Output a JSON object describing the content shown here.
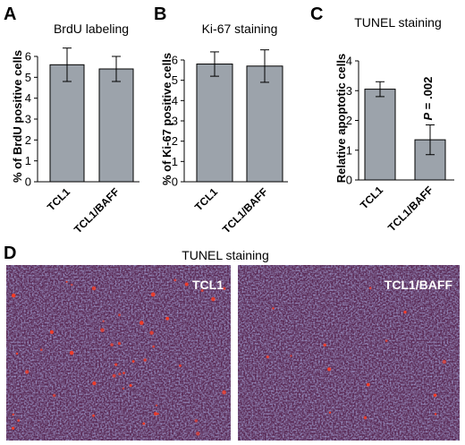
{
  "panels": {
    "a": "A",
    "b": "B",
    "c": "C",
    "d": "D"
  },
  "chart_data": [
    {
      "type": "bar",
      "title": "BrdU labeling",
      "ylabel": "% of BrdU positive cells",
      "xlabel": "",
      "categories": [
        "TCL1",
        "TCL1/BAFF"
      ],
      "values": [
        5.6,
        5.4
      ],
      "errors": [
        0.8,
        0.6
      ],
      "ylim": [
        0,
        6
      ],
      "yticks": [
        "0",
        "1",
        "2",
        "3",
        "4",
        "5",
        "6"
      ],
      "grid": false,
      "bar_color": "#9ca3ab"
    },
    {
      "type": "bar",
      "title": "Ki-67 staining",
      "ylabel": "% of Ki-67 positive cells",
      "xlabel": "",
      "categories": [
        "TCL1",
        "TCL1/BAFF"
      ],
      "values": [
        5.8,
        5.7
      ],
      "errors": [
        0.6,
        0.8
      ],
      "ylim": [
        0,
        6
      ],
      "yticks": [
        "0",
        "1",
        "2",
        "3",
        "4",
        "5",
        "6"
      ],
      "grid": false,
      "bar_color": "#9ca3ab"
    },
    {
      "type": "bar",
      "title": "TUNEL staining",
      "ylabel": "Relative apoptotic cells",
      "xlabel": "",
      "categories": [
        "TCL1",
        "TCL1/BAFF"
      ],
      "values": [
        3.05,
        1.35
      ],
      "errors": [
        0.25,
        0.5
      ],
      "ylim": [
        0,
        4
      ],
      "yticks": [
        "0",
        "1",
        "2",
        "3",
        "4"
      ],
      "grid": false,
      "annotation": "P = .002",
      "bar_color": "#9ca3ab"
    }
  ],
  "images": {
    "title": "TUNEL staining",
    "left_label": "TCL1",
    "right_label": "TCL1/BAFF",
    "background_color": "#5a2a55",
    "nuclei_color": "#6f78c8",
    "apoptotic_color": "#ff3a20"
  }
}
